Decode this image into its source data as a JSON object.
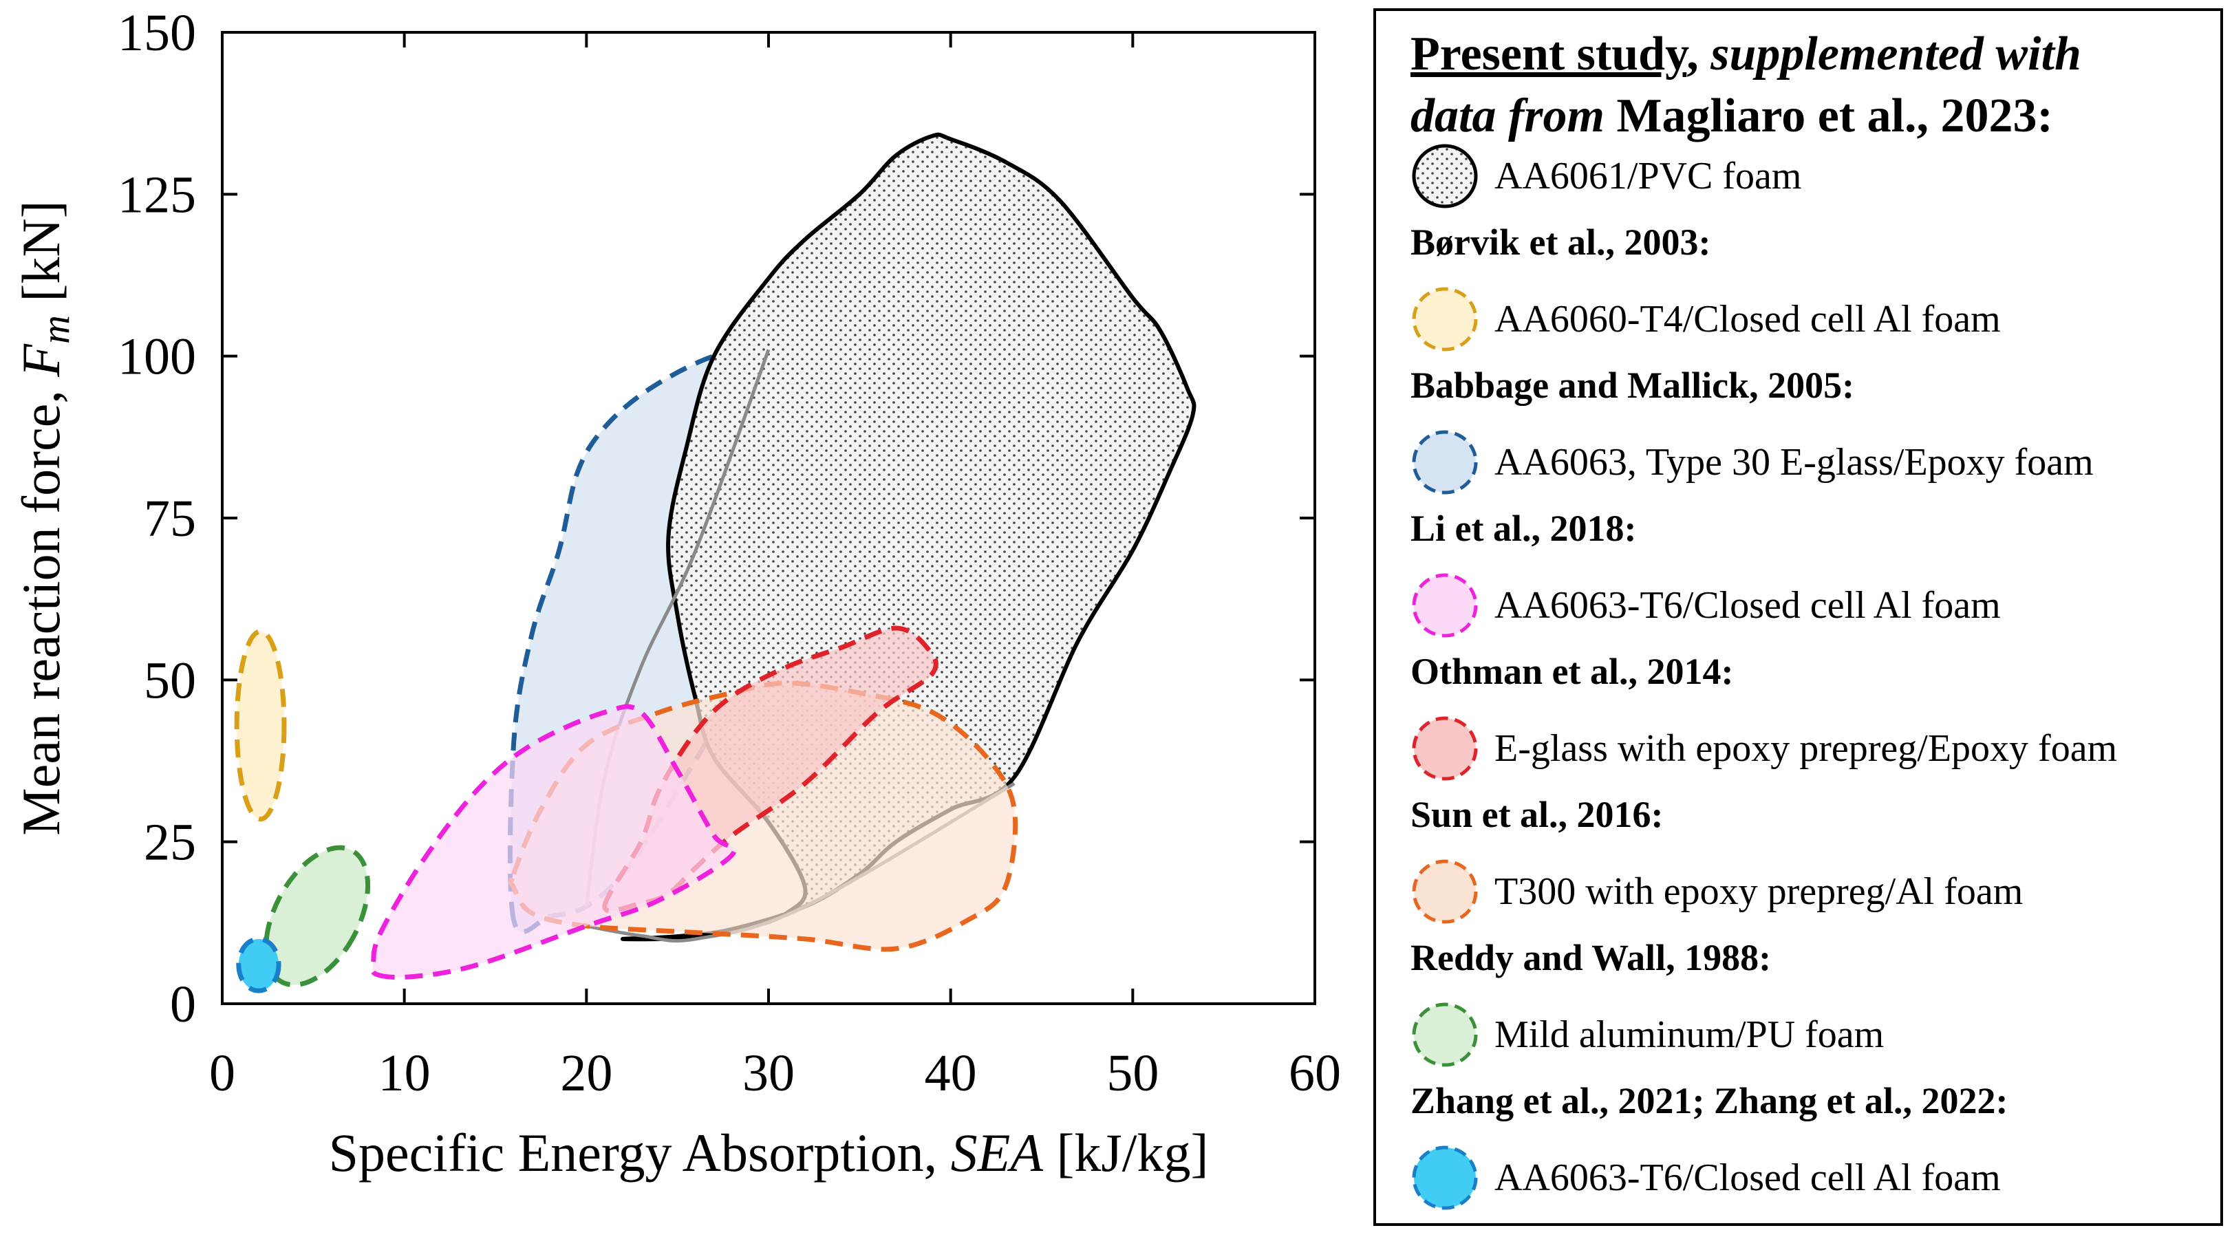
{
  "chart_data": {
    "type": "scatter",
    "title": "",
    "xlabel_prefix": "Specific Energy Absorption, ",
    "xlabel_var": "SEA",
    "xlabel_unit": " [kJ/kg]",
    "ylabel_prefix": "Mean reaction force, ",
    "ylabel_var": "F",
    "ylabel_sub": "m",
    "ylabel_unit": " [kN]",
    "xlim": [
      0,
      60
    ],
    "ylim": [
      0,
      150
    ],
    "x_ticks": [
      0,
      10,
      20,
      30,
      40,
      50,
      60
    ],
    "y_ticks": [
      0,
      25,
      50,
      75,
      100,
      125,
      150
    ],
    "grid": false,
    "legend_position": "right",
    "legend_title": {
      "underlined": "Present study",
      "sep": ", ",
      "italic1": "supplemented with",
      "italic2": "data from",
      "rest": " Magliaro et al., 2023:"
    },
    "series": [
      {
        "name": "AA6061/PVC foam",
        "source": "",
        "style": "solid-dotted",
        "color": "#000000",
        "fill": "#f2f2f2",
        "region": [
          [
            22,
            10
          ],
          [
            26,
            10.2
          ],
          [
            29,
            11.8
          ],
          [
            31,
            14
          ],
          [
            32,
            18
          ],
          [
            30,
            28
          ],
          [
            27,
            38
          ],
          [
            26,
            47
          ],
          [
            25,
            60
          ],
          [
            24.5,
            72
          ],
          [
            25.5,
            86
          ],
          [
            27,
            100
          ],
          [
            30,
            112
          ],
          [
            32,
            118
          ],
          [
            35,
            125
          ],
          [
            37,
            131
          ],
          [
            39,
            134
          ],
          [
            40,
            133.5
          ],
          [
            43,
            130
          ],
          [
            46,
            124
          ],
          [
            50,
            109
          ],
          [
            51.5,
            104
          ],
          [
            53,
            95
          ],
          [
            53.3,
            91
          ],
          [
            52,
            82
          ],
          [
            50,
            70
          ],
          [
            47,
            56
          ],
          [
            43.5,
            35
          ],
          [
            40,
            30
          ],
          [
            37,
            25
          ],
          [
            35,
            20
          ],
          [
            32,
            15
          ],
          [
            28,
            11.5
          ],
          [
            25,
            10.4
          ]
        ],
        "inner_lines": [
          [
            [
              20,
              15
            ],
            [
              21,
              35
            ],
            [
              23,
              52
            ],
            [
              26,
              70
            ],
            [
              30,
              101
            ]
          ],
          [
            [
              20,
              12
            ],
            [
              23,
              10.5
            ],
            [
              26,
              10
            ],
            [
              32,
              15
            ],
            [
              43.5,
              34
            ]
          ]
        ]
      },
      {
        "name": "AA6060-T4/Closed cell Al foam",
        "source": "Børvik et al., 2003:",
        "style": "dashed",
        "color": "#d9a017",
        "fill": "#fdf1cf",
        "ellipse": {
          "cx": 2.1,
          "cy": 43,
          "rx": 1.3,
          "ry": 14.5
        }
      },
      {
        "name": "AA6063, Type 30 E-glass/Epoxy foam",
        "source": "Babbage and Mallick, 2005:",
        "style": "dashed",
        "color": "#1f5c9a",
        "fill": "#d6e3f2",
        "region": [
          [
            16,
            13
          ],
          [
            16,
            40
          ],
          [
            17,
            57
          ],
          [
            18.5,
            70
          ],
          [
            19.5,
            82
          ],
          [
            21,
            89
          ],
          [
            23.5,
            95
          ],
          [
            27,
            100
          ],
          [
            30,
            101
          ],
          [
            34,
            101
          ],
          [
            35,
            98
          ],
          [
            34.6,
            86
          ],
          [
            33,
            77
          ],
          [
            32,
            67
          ],
          [
            31,
            59
          ],
          [
            29,
            50
          ],
          [
            28,
            47.5
          ],
          [
            26.5,
            40
          ],
          [
            25,
            33
          ],
          [
            23.5,
            26
          ],
          [
            22,
            20
          ],
          [
            20,
            15
          ],
          [
            18,
            13.5
          ]
        ]
      },
      {
        "name": "AA6063-T6/Closed cell Al foam",
        "source": "Li et al., 2018:",
        "style": "dashed",
        "color": "#ee22dd",
        "fill": "#fcd9f7",
        "region": [
          [
            8.5,
            4.5
          ],
          [
            10.5,
            4.2
          ],
          [
            14,
            6
          ],
          [
            20,
            12
          ],
          [
            24,
            16
          ],
          [
            28,
            23
          ],
          [
            27,
            26
          ],
          [
            25,
            36
          ],
          [
            23,
            45
          ],
          [
            21,
            45
          ],
          [
            17,
            40
          ],
          [
            14,
            33
          ],
          [
            11,
            22
          ],
          [
            8.7,
            11
          ],
          [
            8.3,
            6.5
          ]
        ]
      },
      {
        "name": "E-glass with epoxy prepreg/Epoxy foam",
        "source": "Othman et al., 2014:",
        "style": "dashed",
        "color": "#e0232b",
        "fill": "#f9c6c6",
        "region": [
          [
            21,
            15
          ],
          [
            23,
            25
          ],
          [
            24,
            33
          ],
          [
            26,
            42
          ],
          [
            28,
            47.5
          ],
          [
            31,
            52
          ],
          [
            34,
            55
          ],
          [
            37,
            58
          ],
          [
            38.7,
            55
          ],
          [
            39,
            51
          ],
          [
            36,
            45
          ],
          [
            32,
            34
          ],
          [
            28,
            26
          ],
          [
            26,
            21
          ],
          [
            24.5,
            17
          ],
          [
            23,
            15.5
          ]
        ]
      },
      {
        "name": "T300 with epoxy prepreg/Al foam",
        "source": "Sun et al., 2016:",
        "style": "dashed",
        "color": "#e8661e",
        "fill": "#fbe3d3",
        "region": [
          [
            16,
            20
          ],
          [
            17.5,
            30
          ],
          [
            20,
            40
          ],
          [
            24,
            45
          ],
          [
            28,
            48
          ],
          [
            31,
            49.5
          ],
          [
            35,
            48
          ],
          [
            39,
            45
          ],
          [
            42,
            38
          ],
          [
            43.5,
            30
          ],
          [
            43,
            18
          ],
          [
            41,
            13
          ],
          [
            37,
            8.5
          ],
          [
            32,
            10
          ],
          [
            26,
            11
          ],
          [
            20,
            12
          ],
          [
            17,
            14
          ],
          [
            16,
            18
          ]
        ]
      },
      {
        "name": "Mild aluminum/PU foam",
        "source": "Reddy and Wall, 1988:",
        "style": "dashed",
        "color": "#3a913a",
        "fill": "#d9efd6",
        "ellipse": {
          "cx": 5.2,
          "cy": 13.5,
          "rx": 2.3,
          "ry": 11.5,
          "rotate": 28
        }
      },
      {
        "name": "AA6063-T6/Closed cell Al foam",
        "source": "Zhang et al., 2021; Zhang et al., 2022:",
        "style": "dashed",
        "color": "#1a7fc9",
        "fill": "#41cdf3",
        "ellipse": {
          "cx": 2.0,
          "cy": 6.0,
          "rx": 1.1,
          "ry": 4.0
        }
      }
    ]
  }
}
